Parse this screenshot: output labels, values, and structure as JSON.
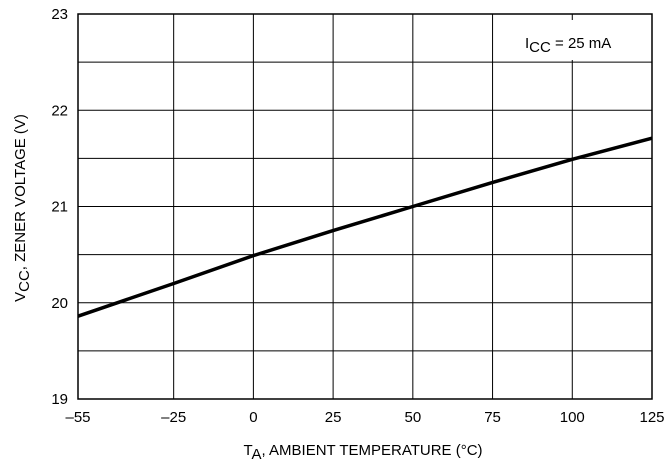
{
  "chart_data": {
    "type": "line",
    "x_ticks": [
      -55,
      -25,
      0,
      25,
      50,
      75,
      100,
      125
    ],
    "y_ticks": [
      19,
      20,
      21,
      22,
      23
    ],
    "xlim": [
      -55,
      125
    ],
    "ylim": [
      19,
      23
    ],
    "grid": true,
    "xlabel": {
      "main": "T",
      "sub": "A",
      "rest": ", AMBIENT TEMPERATURE (°C)"
    },
    "ylabel": {
      "main": "V",
      "sub": "CC",
      "rest": ", ZENER VOLTAGE (V)"
    },
    "annotation": {
      "main": "I",
      "sub": "CC",
      "rest": " = 25 mA"
    },
    "series": [
      {
        "color": "#000000",
        "x": [
          -55,
          -25,
          0,
          25,
          50,
          75,
          100,
          125
        ],
        "y": [
          19.86,
          20.2,
          20.49,
          20.75,
          21.0,
          21.25,
          21.49,
          21.71
        ]
      }
    ]
  }
}
